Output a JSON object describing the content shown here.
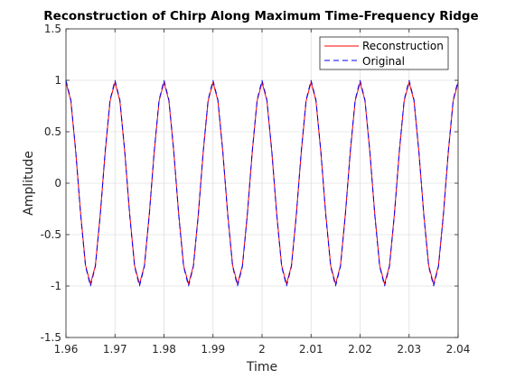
{
  "chart_data": {
    "type": "line",
    "title": "Reconstruction of Chirp Along Maximum Time-Frequency Ridge",
    "xlabel": "Time",
    "ylabel": "Amplitude",
    "xlim": [
      1.96,
      2.04
    ],
    "ylim": [
      -1.5,
      1.5
    ],
    "xticks": [
      "1.96",
      "1.97",
      "1.98",
      "1.99",
      "2",
      "2.01",
      "2.02",
      "2.03",
      "2.04"
    ],
    "xtick_values": [
      1.96,
      1.97,
      1.98,
      1.99,
      2.0,
      2.01,
      2.02,
      2.03,
      2.04
    ],
    "yticks": [
      "-1.5",
      "-1",
      "-0.5",
      "0",
      "0.5",
      "1",
      "1.5"
    ],
    "ytick_values": [
      -1.5,
      -1,
      -0.5,
      0,
      0.5,
      1,
      1.5
    ],
    "grid": true,
    "legend_position": "top-right",
    "series": [
      {
        "name": "Reconstruction",
        "color": "#ff0000",
        "style": "solid",
        "x": [
          1.96,
          1.961,
          1.962,
          1.963,
          1.964,
          1.965,
          1.966,
          1.967,
          1.968,
          1.969,
          1.97,
          1.971,
          1.972,
          1.973,
          1.974,
          1.975,
          1.976,
          1.977,
          1.978,
          1.979,
          1.98,
          1.981,
          1.982,
          1.983,
          1.984,
          1.985,
          1.986,
          1.987,
          1.988,
          1.989,
          1.99,
          1.991,
          1.992,
          1.993,
          1.994,
          1.995,
          1.996,
          1.997,
          1.998,
          1.999,
          2.0,
          2.001,
          2.002,
          2.003,
          2.004,
          2.005,
          2.006,
          2.007,
          2.008,
          2.009,
          2.01,
          2.011,
          2.012,
          2.013,
          2.014,
          2.015,
          2.016,
          2.017,
          2.018,
          2.019,
          2.02,
          2.021,
          2.022,
          2.023,
          2.024,
          2.025,
          2.026,
          2.027,
          2.028,
          2.029,
          2.03,
          2.031,
          2.032,
          2.033,
          2.034,
          2.035,
          2.036,
          2.037,
          2.038,
          2.039,
          2.04
        ],
        "y": [
          0.98,
          0.8,
          0.3,
          -0.3,
          -0.8,
          -0.98,
          -0.8,
          -0.3,
          0.3,
          0.8,
          0.98,
          0.8,
          0.3,
          -0.3,
          -0.8,
          -0.98,
          -0.8,
          -0.3,
          0.3,
          0.8,
          0.98,
          0.8,
          0.3,
          -0.3,
          -0.8,
          -0.98,
          -0.8,
          -0.3,
          0.3,
          0.8,
          0.98,
          0.8,
          0.3,
          -0.3,
          -0.8,
          -0.98,
          -0.8,
          -0.3,
          0.3,
          0.8,
          0.98,
          0.8,
          0.3,
          -0.3,
          -0.8,
          -0.98,
          -0.8,
          -0.3,
          0.3,
          0.8,
          0.98,
          0.8,
          0.3,
          -0.3,
          -0.8,
          -0.98,
          -0.8,
          -0.3,
          0.3,
          0.8,
          0.98,
          0.8,
          0.3,
          -0.3,
          -0.8,
          -0.98,
          -0.8,
          -0.3,
          0.3,
          0.8,
          0.98,
          0.8,
          0.3,
          -0.3,
          -0.8,
          -0.98,
          -0.8,
          -0.3,
          0.3,
          0.8,
          0.98
        ]
      },
      {
        "name": "Original",
        "color": "#0000ff",
        "style": "dashed",
        "x": [
          1.96,
          1.961,
          1.962,
          1.963,
          1.964,
          1.965,
          1.966,
          1.967,
          1.968,
          1.969,
          1.97,
          1.971,
          1.972,
          1.973,
          1.974,
          1.975,
          1.976,
          1.977,
          1.978,
          1.979,
          1.98,
          1.981,
          1.982,
          1.983,
          1.984,
          1.985,
          1.986,
          1.987,
          1.988,
          1.989,
          1.99,
          1.991,
          1.992,
          1.993,
          1.994,
          1.995,
          1.996,
          1.997,
          1.998,
          1.999,
          2.0,
          2.001,
          2.002,
          2.003,
          2.004,
          2.005,
          2.006,
          2.007,
          2.008,
          2.009,
          2.01,
          2.011,
          2.012,
          2.013,
          2.014,
          2.015,
          2.016,
          2.017,
          2.018,
          2.019,
          2.02,
          2.021,
          2.022,
          2.023,
          2.024,
          2.025,
          2.026,
          2.027,
          2.028,
          2.029,
          2.03,
          2.031,
          2.032,
          2.033,
          2.034,
          2.035,
          2.036,
          2.037,
          2.038,
          2.039,
          2.04
        ],
        "y": [
          1.0,
          0.81,
          0.31,
          -0.31,
          -0.81,
          -1.0,
          -0.81,
          -0.31,
          0.31,
          0.81,
          1.0,
          0.81,
          0.31,
          -0.31,
          -0.81,
          -1.0,
          -0.81,
          -0.31,
          0.31,
          0.81,
          1.0,
          0.81,
          0.31,
          -0.31,
          -0.81,
          -1.0,
          -0.81,
          -0.31,
          0.31,
          0.81,
          1.0,
          0.81,
          0.31,
          -0.31,
          -0.81,
          -1.0,
          -0.81,
          -0.31,
          0.31,
          0.81,
          1.0,
          0.81,
          0.31,
          -0.31,
          -0.81,
          -1.0,
          -0.81,
          -0.31,
          0.31,
          0.81,
          1.0,
          0.81,
          0.31,
          -0.31,
          -0.81,
          -1.0,
          -0.81,
          -0.31,
          0.31,
          0.81,
          1.0,
          0.81,
          0.31,
          -0.31,
          -0.81,
          -1.0,
          -0.81,
          -0.31,
          0.31,
          0.81,
          1.0,
          0.81,
          0.31,
          -0.31,
          -0.81,
          -1.0,
          -0.81,
          -0.31,
          0.31,
          0.81,
          1.0
        ]
      }
    ]
  }
}
